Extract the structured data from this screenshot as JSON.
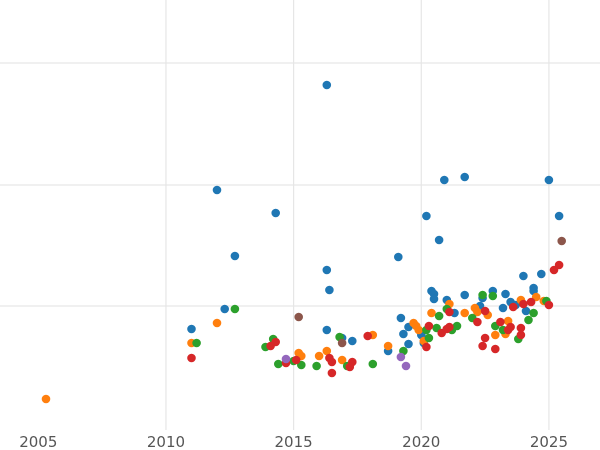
{
  "chart_data": {
    "type": "scatter",
    "title": "",
    "xlabel": "",
    "ylabel": "",
    "xlim": [
      2003.5,
      2027
    ],
    "ylim": [
      0,
      450
    ],
    "x_ticks": [
      2005,
      2010,
      2015,
      2020,
      2025
    ],
    "x_tick_labels": [
      "2005",
      "2010",
      "2015",
      "2020",
      "2025"
    ],
    "y_gridlines": [
      63,
      185,
      306
    ],
    "x_gridlines": [
      2010,
      2015,
      2020,
      2025
    ],
    "grid": "on",
    "legend": "none",
    "y_tick_labels": "none",
    "series": [
      {
        "color": "#1f77b4",
        "points": [
          [
            2011.0,
            329
          ],
          [
            2012.0,
            190
          ],
          [
            2012.3,
            309
          ],
          [
            2012.7,
            256
          ],
          [
            2014.3,
            213
          ],
          [
            2016.3,
            85
          ],
          [
            2016.3,
            270
          ],
          [
            2016.4,
            290
          ],
          [
            2016.3,
            330
          ],
          [
            2016.9,
            338
          ],
          [
            2017.3,
            341
          ],
          [
            2018.7,
            351
          ],
          [
            2019.1,
            257
          ],
          [
            2019.2,
            318
          ],
          [
            2019.3,
            334
          ],
          [
            2019.5,
            344
          ],
          [
            2019.5,
            327
          ],
          [
            2020.2,
            216
          ],
          [
            2020.4,
            291
          ],
          [
            2020.5,
            294
          ],
          [
            2020.5,
            299
          ],
          [
            2020.7,
            240
          ],
          [
            2020.9,
            180
          ],
          [
            2021.0,
            300
          ],
          [
            2021.3,
            313
          ],
          [
            2021.7,
            295
          ],
          [
            2021.7,
            177
          ],
          [
            2022.4,
            298
          ],
          [
            2022.8,
            291
          ],
          [
            2023.3,
            294
          ],
          [
            2023.5,
            302
          ],
          [
            2024.0,
            276
          ],
          [
            2024.1,
            311
          ],
          [
            2024.4,
            288
          ],
          [
            2024.4,
            291
          ],
          [
            2024.7,
            274
          ],
          [
            2025.0,
            180
          ],
          [
            2025.4,
            216
          ],
          [
            2020.0,
            335
          ],
          [
            2020.1,
            343
          ],
          [
            2022.3,
            306
          ],
          [
            2023.2,
            308
          ],
          [
            2023.7,
            305
          ]
        ]
      },
      {
        "color": "#ff7f0e",
        "points": [
          [
            2005.3,
            399
          ],
          [
            2011.0,
            343
          ],
          [
            2012.0,
            323
          ],
          [
            2015.2,
            353
          ],
          [
            2015.3,
            356
          ],
          [
            2016.0,
            356
          ],
          [
            2016.3,
            351
          ],
          [
            2016.9,
            360
          ],
          [
            2018.1,
            335
          ],
          [
            2018.7,
            346
          ],
          [
            2019.7,
            323
          ],
          [
            2019.8,
            326
          ],
          [
            2019.9,
            330
          ],
          [
            2020.1,
            341
          ],
          [
            2020.4,
            313
          ],
          [
            2021.1,
            304
          ],
          [
            2021.7,
            313
          ],
          [
            2022.1,
            308
          ],
          [
            2022.2,
            312
          ],
          [
            2022.9,
            335
          ],
          [
            2023.3,
            334
          ],
          [
            2023.4,
            321
          ],
          [
            2024.5,
            297
          ],
          [
            2024.8,
            301
          ],
          [
            2022.6,
            315
          ],
          [
            2023.9,
            300
          ]
        ]
      },
      {
        "color": "#2ca02c",
        "points": [
          [
            2011.2,
            343
          ],
          [
            2012.7,
            309
          ],
          [
            2013.9,
            347
          ],
          [
            2014.2,
            339
          ],
          [
            2014.4,
            364
          ],
          [
            2015.0,
            361
          ],
          [
            2015.3,
            365
          ],
          [
            2015.9,
            366
          ],
          [
            2016.8,
            337
          ],
          [
            2017.1,
            366
          ],
          [
            2018.1,
            364
          ],
          [
            2019.3,
            351
          ],
          [
            2020.2,
            330
          ],
          [
            2020.3,
            338
          ],
          [
            2020.6,
            328
          ],
          [
            2020.7,
            316
          ],
          [
            2021.0,
            309
          ],
          [
            2021.2,
            330
          ],
          [
            2021.4,
            326
          ],
          [
            2022.0,
            318
          ],
          [
            2022.4,
            295
          ],
          [
            2022.8,
            296
          ],
          [
            2022.9,
            326
          ],
          [
            2023.2,
            330
          ],
          [
            2023.8,
            339
          ],
          [
            2024.2,
            320
          ],
          [
            2024.4,
            313
          ],
          [
            2024.9,
            301
          ]
        ]
      },
      {
        "color": "#d62728",
        "points": [
          [
            2011.0,
            358
          ],
          [
            2014.1,
            346
          ],
          [
            2014.3,
            342
          ],
          [
            2014.7,
            363
          ],
          [
            2015.1,
            360
          ],
          [
            2016.4,
            358
          ],
          [
            2016.5,
            362
          ],
          [
            2016.5,
            373
          ],
          [
            2017.3,
            362
          ],
          [
            2017.2,
            367
          ],
          [
            2017.9,
            336
          ],
          [
            2020.2,
            347
          ],
          [
            2020.3,
            326
          ],
          [
            2020.8,
            333
          ],
          [
            2021.0,
            329
          ],
          [
            2021.1,
            312
          ],
          [
            2021.1,
            327
          ],
          [
            2022.2,
            322
          ],
          [
            2022.4,
            346
          ],
          [
            2022.5,
            338
          ],
          [
            2022.5,
            311
          ],
          [
            2022.9,
            349
          ],
          [
            2023.1,
            322
          ],
          [
            2023.4,
            330
          ],
          [
            2023.5,
            327
          ],
          [
            2023.6,
            307
          ],
          [
            2023.9,
            328
          ],
          [
            2023.9,
            335
          ],
          [
            2024.0,
            304
          ],
          [
            2024.3,
            302
          ],
          [
            2025.0,
            305
          ],
          [
            2025.2,
            270
          ],
          [
            2025.4,
            265
          ]
        ]
      },
      {
        "color": "#9467bd",
        "points": [
          [
            2014.7,
            359
          ],
          [
            2019.2,
            357
          ],
          [
            2019.4,
            366
          ]
        ]
      },
      {
        "color": "#8c564b",
        "points": [
          [
            2015.2,
            317
          ],
          [
            2016.9,
            343
          ],
          [
            2025.5,
            241
          ]
        ]
      }
    ]
  }
}
